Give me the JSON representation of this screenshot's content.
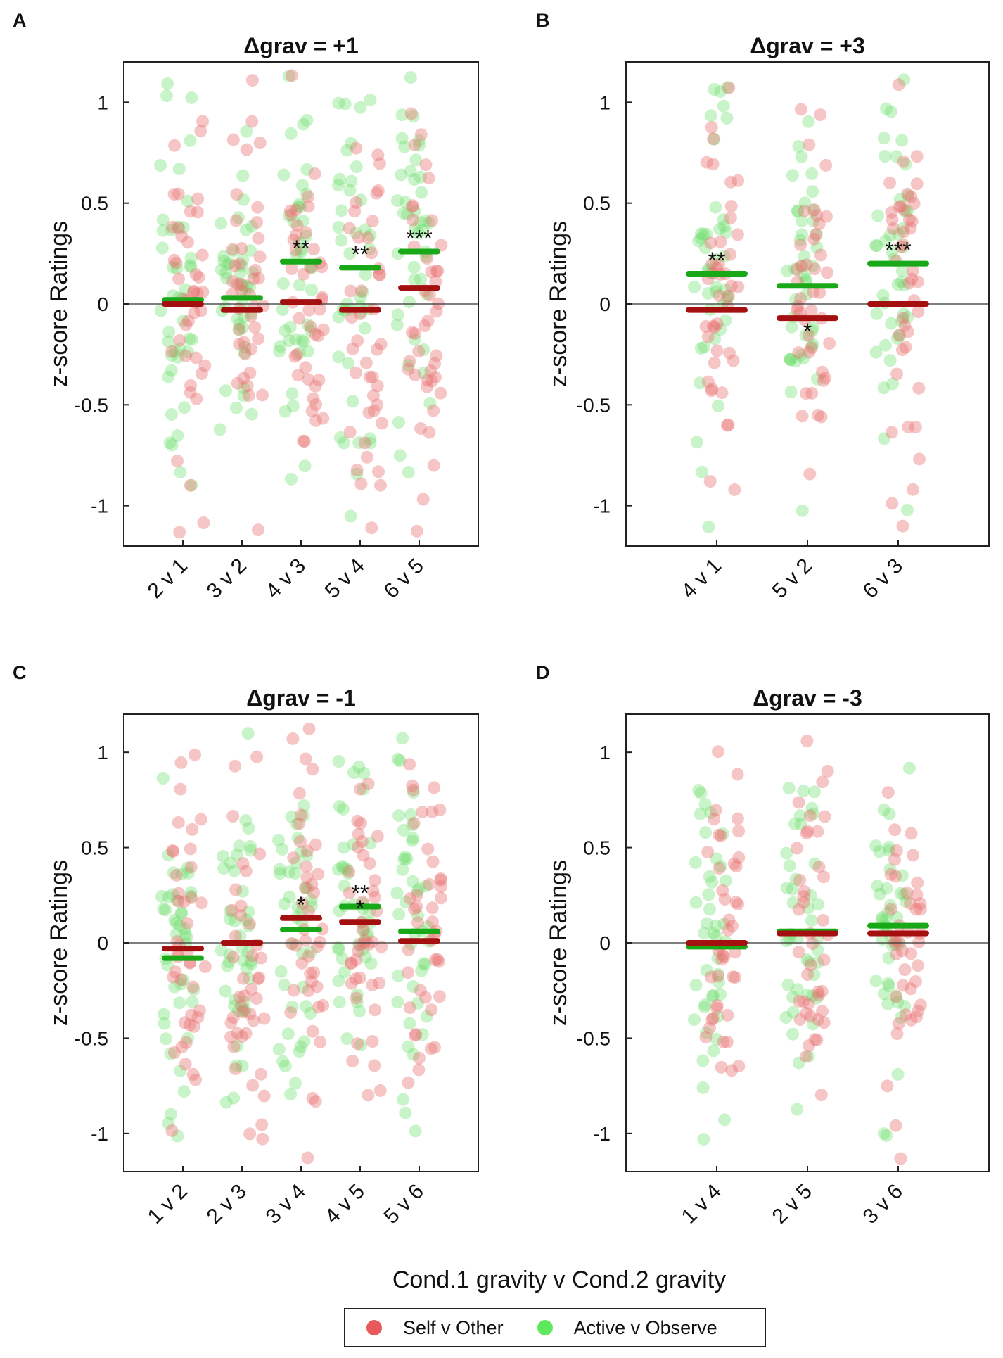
{
  "figure": {
    "xlabel": "Cond.1 gravity v Cond.2 gravity",
    "ylabel": "z-score Ratings",
    "legend": [
      {
        "label": "Self v Other",
        "color": "#e85a5a"
      },
      {
        "label": "Active v Observe",
        "color": "#5ee85e"
      }
    ],
    "colors": {
      "green_bar": "#18a818",
      "red_bar": "#a41010",
      "red_dot": "#e87070",
      "green_dot": "#70e070"
    }
  },
  "chart_data": [
    {
      "panel": "A",
      "title": "Δgrav = +1",
      "type": "scatter",
      "ylim": [
        -1.2,
        1.2
      ],
      "yticks": [
        -1,
        -0.5,
        0,
        0.5,
        1
      ],
      "categories": [
        "2 v 1",
        "3 v 2",
        "4 v 3",
        "5 v 4",
        "6 v 5"
      ],
      "series": [
        {
          "name": "Active v Observe",
          "means": [
            0.02,
            0.03,
            0.21,
            0.18,
            0.26
          ]
        },
        {
          "name": "Self v Other",
          "means": [
            0.0,
            -0.03,
            0.01,
            -0.03,
            0.08
          ]
        }
      ],
      "significance": [
        {
          "category": "4 v 3",
          "series": "Active v Observe",
          "stars": "**"
        },
        {
          "category": "5 v 4",
          "series": "Active v Observe",
          "stars": "**"
        },
        {
          "category": "6 v 5",
          "series": "Active v Observe",
          "stars": "***"
        }
      ]
    },
    {
      "panel": "B",
      "title": "Δgrav = +3",
      "type": "scatter",
      "ylim": [
        -1.2,
        1.2
      ],
      "yticks": [
        -1,
        -0.5,
        0,
        0.5,
        1
      ],
      "categories": [
        "4 v 1",
        "5 v 2",
        "6 v 3"
      ],
      "series": [
        {
          "name": "Active v Observe",
          "means": [
            0.15,
            0.09,
            0.2
          ]
        },
        {
          "name": "Self v Other",
          "means": [
            -0.03,
            -0.07,
            0.0
          ]
        }
      ],
      "significance": [
        {
          "category": "4 v 1",
          "series": "Active v Observe",
          "stars": "**"
        },
        {
          "category": "5 v 2",
          "series": "Self v Other",
          "stars": "*"
        },
        {
          "category": "6 v 3",
          "series": "Active v Observe",
          "stars": "***"
        }
      ]
    },
    {
      "panel": "C",
      "title": "Δgrav = -1",
      "type": "scatter",
      "ylim": [
        -1.2,
        1.2
      ],
      "yticks": [
        -1,
        -0.5,
        0,
        0.5,
        1
      ],
      "categories": [
        "1 v 2",
        "2 v 3",
        "3 v 4",
        "4 v 5",
        "5 v 6"
      ],
      "series": [
        {
          "name": "Active v Observe",
          "means": [
            -0.08,
            0.0,
            0.07,
            0.19,
            0.06
          ]
        },
        {
          "name": "Self v Other",
          "means": [
            -0.03,
            0.0,
            0.13,
            0.11,
            0.01
          ]
        }
      ],
      "significance": [
        {
          "category": "3 v 4",
          "series": "Self v Other",
          "stars": "*"
        },
        {
          "category": "4 v 5",
          "series": "Active v Observe",
          "stars": "**"
        },
        {
          "category": "4 v 5",
          "series": "Self v Other",
          "stars": "*"
        }
      ]
    },
    {
      "panel": "D",
      "title": "Δgrav = -3",
      "type": "scatter",
      "ylim": [
        -1.2,
        1.2
      ],
      "yticks": [
        -1,
        -0.5,
        0,
        0.5,
        1
      ],
      "categories": [
        "1 v 4",
        "2 v 5",
        "3 v 6"
      ],
      "series": [
        {
          "name": "Active v Observe",
          "means": [
            -0.02,
            0.06,
            0.09
          ]
        },
        {
          "name": "Self v Other",
          "means": [
            0.0,
            0.05,
            0.05
          ]
        }
      ],
      "significance": []
    }
  ]
}
